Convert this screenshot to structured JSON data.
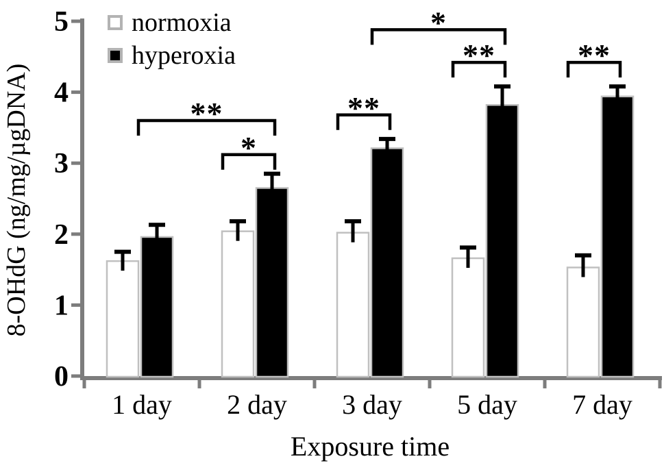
{
  "colors": {
    "axis": "#7d7d7d",
    "bar_outline": "#c0c0c0",
    "normoxia_fill": "#ffffff",
    "hyperoxia_fill": "#000000",
    "text": "#000000"
  },
  "chart_data": {
    "type": "bar",
    "title": "",
    "xlabel": "Exposure time",
    "ylabel": "8-OHdG (ng/mg/µgDNA)",
    "categories": [
      "1 day",
      "2 day",
      "3 day",
      "5 day",
      "7 day"
    ],
    "series": [
      {
        "name": "normoxia",
        "values": [
          1.62,
          2.04,
          2.02,
          1.66,
          1.53
        ],
        "errors": [
          0.16,
          0.17,
          0.19,
          0.18,
          0.2
        ]
      },
      {
        "name": "hyperoxia",
        "values": [
          1.96,
          2.65,
          3.21,
          3.82,
          3.94
        ],
        "errors": [
          0.2,
          0.23,
          0.16,
          0.29,
          0.17
        ]
      }
    ],
    "ylim": [
      0,
      5
    ],
    "yticks": [
      0,
      1,
      2,
      3,
      4,
      5
    ],
    "grid": false,
    "legend_position": "top-left",
    "error_bars": "caps, upper side only",
    "significance_brackets": [
      {
        "stars": "**",
        "from": {
          "cat": 0,
          "point": "pair"
        },
        "to": {
          "cat": 1,
          "point": "hyperoxia"
        },
        "y": 3.6
      },
      {
        "stars": "*",
        "from": {
          "cat": 1,
          "point": "normoxia"
        },
        "to": {
          "cat": 1,
          "point": "hyperoxia"
        },
        "y": 3.12
      },
      {
        "stars": "**",
        "from": {
          "cat": 2,
          "point": "normoxia"
        },
        "to": {
          "cat": 2,
          "point": "hyperoxia"
        },
        "y": 3.68
      },
      {
        "stars": "*",
        "from": {
          "cat": 2,
          "point": "hyperoxia"
        },
        "to": {
          "cat": 3,
          "point": "hyperoxia"
        },
        "y": 4.88
      },
      {
        "stars": "**",
        "from": {
          "cat": 3,
          "point": "normoxia"
        },
        "to": {
          "cat": 3,
          "point": "hyperoxia"
        },
        "y": 4.42
      },
      {
        "stars": "**",
        "from": {
          "cat": 4,
          "point": "normoxia"
        },
        "to": {
          "cat": 4,
          "point": "hyperoxia"
        },
        "y": 4.42
      }
    ]
  }
}
